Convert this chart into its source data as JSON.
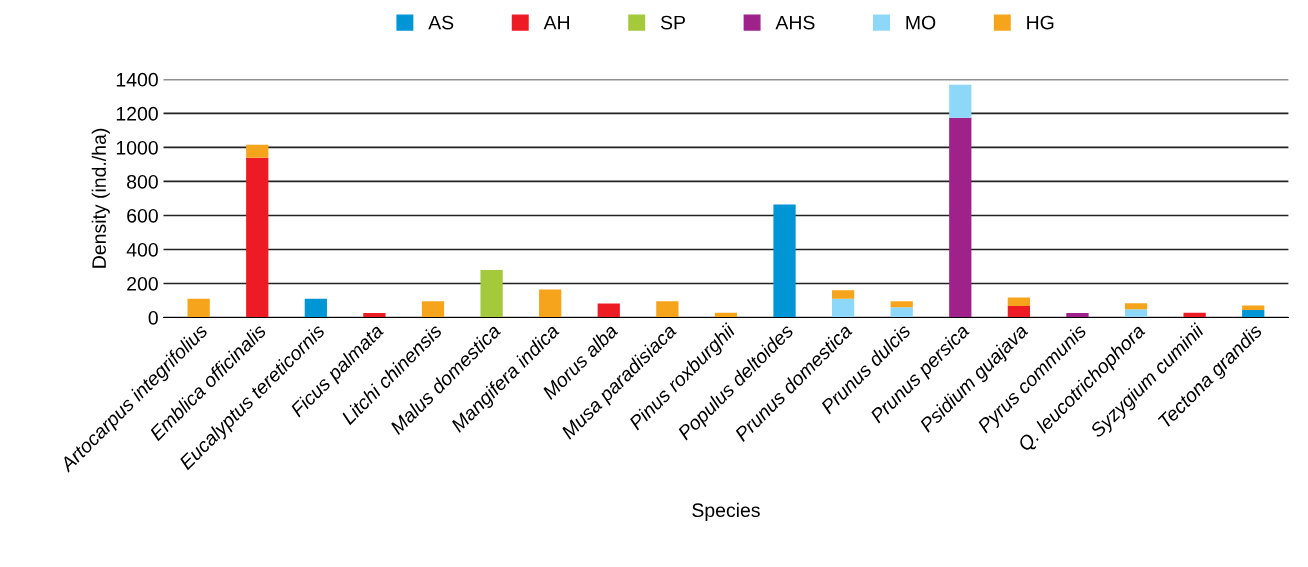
{
  "chart_data": {
    "type": "bar",
    "stacked": true,
    "xlabel": "Species",
    "ylabel": "Density (ind./ha)",
    "categories": [
      "Artocarpus integrifolius",
      "Emblica officinalis",
      "Eucalyptus tereticornis",
      "Ficus palmata",
      "Litchi chinensis",
      "Malus domestica",
      "Mangifera indica",
      "Morus alba",
      "Musa paradisiaca",
      "Pinus roxburghii",
      "Populus deltoides",
      "Prunus domestica",
      "Prunus dulcis",
      "Prunus persica",
      "Psidium guajava",
      "Pyrus communis",
      "Q. leucotrichophora",
      "Syzygium cuminii",
      "Tectona grandis"
    ],
    "series": [
      {
        "name": "AS",
        "color": "#0096d6",
        "values": [
          null,
          null,
          110,
          null,
          null,
          null,
          null,
          null,
          null,
          null,
          665,
          null,
          null,
          null,
          null,
          null,
          null,
          null,
          44
        ]
      },
      {
        "name": "AH",
        "color": "#ed1c24",
        "values": [
          null,
          940,
          null,
          26,
          null,
          null,
          null,
          83,
          null,
          null,
          null,
          null,
          null,
          null,
          67,
          null,
          null,
          28,
          null
        ]
      },
      {
        "name": "SP",
        "color": "#a4c93a",
        "values": [
          null,
          null,
          null,
          null,
          null,
          280,
          null,
          null,
          null,
          null,
          null,
          null,
          null,
          null,
          null,
          null,
          null,
          null,
          null
        ]
      },
      {
        "name": "AHS",
        "color": "#9e228a",
        "values": [
          null,
          null,
          null,
          null,
          null,
          null,
          null,
          null,
          null,
          null,
          null,
          null,
          null,
          1175,
          null,
          26,
          null,
          null,
          null
        ]
      },
      {
        "name": "MO",
        "color": "#8dd8f8",
        "values": [
          null,
          null,
          null,
          null,
          null,
          null,
          null,
          null,
          null,
          null,
          null,
          110,
          61,
          193,
          null,
          null,
          49,
          null,
          null
        ]
      },
      {
        "name": "HG",
        "color": "#f6a41c",
        "values": [
          110,
          75,
          null,
          null,
          95,
          null,
          165,
          null,
          95,
          28,
          null,
          50,
          35,
          null,
          50,
          null,
          35,
          null,
          26
        ]
      }
    ],
    "ylim": [
      0,
      1400
    ],
    "yticks": [
      0,
      200,
      400,
      600,
      800,
      1000,
      1200,
      1400
    ],
    "grid": "y",
    "legend": "top"
  }
}
